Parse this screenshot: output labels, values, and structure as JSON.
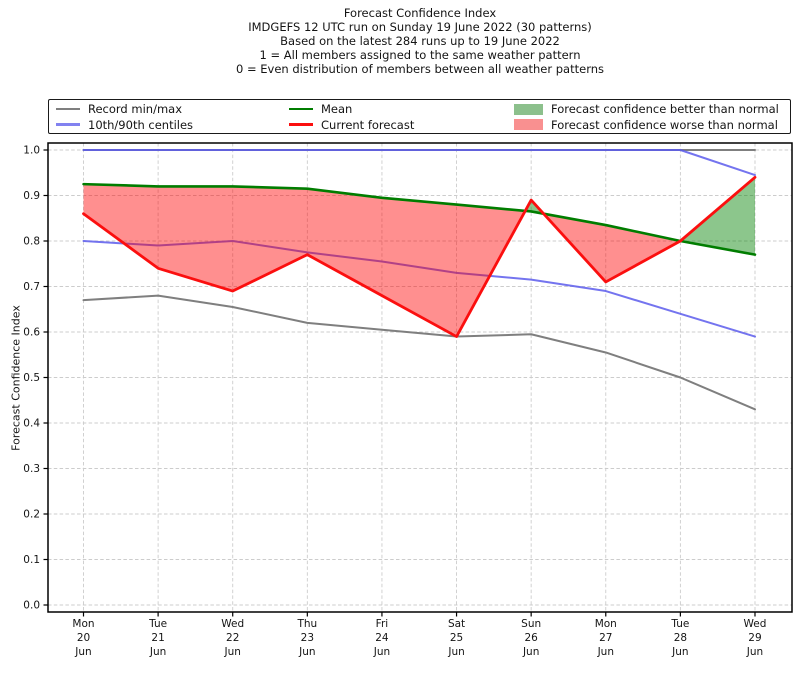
{
  "figure": {
    "title_lines": [
      "Forecast Confidence Index",
      "IMDGEFS 12 UTC run on Sunday 19 June 2022 (30 patterns)",
      "Based on the latest 284 runs up to 19 June 2022",
      "1 = All members assigned to the same weather pattern",
      "0 = Even distribution of members between all weather patterns"
    ]
  },
  "legend": {
    "items": [
      {
        "label": "Record min/max",
        "swatch": "line",
        "color": "#7f7f7f"
      },
      {
        "label": "10th/90th centiles",
        "swatch": "line",
        "color": "#8282f0"
      },
      {
        "label": "Mean",
        "swatch": "line",
        "color": "#007d00"
      },
      {
        "label": "Current forecast",
        "swatch": "line",
        "color": "#fb0f0f"
      },
      {
        "label": "Forecast confidence better than normal",
        "swatch": "patch",
        "color": "#8cc08c"
      },
      {
        "label": "Forecast confidence worse than normal",
        "swatch": "patch",
        "color": "#f99090"
      }
    ]
  },
  "chart_data": {
    "type": "line",
    "title": "Forecast Confidence Index",
    "xlabel": "",
    "ylabel": "Forecast Confidence Index",
    "ylim": [
      0.0,
      1.0
    ],
    "ytick_labels": [
      "0.0",
      "0.1",
      "0.2",
      "0.3",
      "0.4",
      "0.5",
      "0.6",
      "0.7",
      "0.8",
      "0.9",
      "1.0"
    ],
    "grid": "dashed, both axes",
    "legend_position": "top",
    "categories": [
      {
        "day": "Mon",
        "date": "20",
        "month": "Jun"
      },
      {
        "day": "Tue",
        "date": "21",
        "month": "Jun"
      },
      {
        "day": "Wed",
        "date": "22",
        "month": "Jun"
      },
      {
        "day": "Thu",
        "date": "23",
        "month": "Jun"
      },
      {
        "day": "Fri",
        "date": "24",
        "month": "Jun"
      },
      {
        "day": "Sat",
        "date": "25",
        "month": "Jun"
      },
      {
        "day": "Sun",
        "date": "26",
        "month": "Jun"
      },
      {
        "day": "Mon",
        "date": "27",
        "month": "Jun"
      },
      {
        "day": "Tue",
        "date": "28",
        "month": "Jun"
      },
      {
        "day": "Wed",
        "date": "29",
        "month": "Jun"
      }
    ],
    "series": [
      {
        "id": "record_max",
        "name": "Record max",
        "color": "#7f7f7f",
        "lw": 2.0,
        "opacity": 1,
        "values": [
          1.0,
          1.0,
          1.0,
          1.0,
          1.0,
          1.0,
          1.0,
          1.0,
          1.0,
          1.0
        ]
      },
      {
        "id": "record_min",
        "name": "Record min",
        "color": "#7f7f7f",
        "lw": 2.0,
        "opacity": 1,
        "values": [
          0.67,
          0.68,
          0.655,
          0.62,
          0.605,
          0.59,
          0.595,
          0.555,
          0.5,
          0.43
        ]
      },
      {
        "id": "p90",
        "name": "90th centile",
        "color": "#5c5cec",
        "lw": 2.0,
        "opacity": 0.85,
        "values": [
          1.0,
          1.0,
          1.0,
          1.0,
          1.0,
          1.0,
          1.0,
          1.0,
          1.0,
          0.945
        ]
      },
      {
        "id": "p10",
        "name": "10th centile",
        "color": "#5c5cec",
        "lw": 2.0,
        "opacity": 0.85,
        "values": [
          0.8,
          0.79,
          0.8,
          0.775,
          0.755,
          0.73,
          0.715,
          0.69,
          0.64,
          0.59
        ]
      },
      {
        "id": "mean",
        "name": "Mean",
        "color": "#007d00",
        "lw": 2.6,
        "opacity": 1,
        "values": [
          0.925,
          0.92,
          0.92,
          0.915,
          0.895,
          0.88,
          0.865,
          0.835,
          0.8,
          0.77
        ]
      },
      {
        "id": "current",
        "name": "Current forecast",
        "color": "#fb0f0f",
        "lw": 2.8,
        "opacity": 1,
        "values": [
          0.86,
          0.74,
          0.69,
          0.77,
          0.68,
          0.59,
          0.89,
          0.71,
          0.8,
          0.94
        ]
      }
    ],
    "fill_between": {
      "upper": "current",
      "reference": "mean",
      "better_color": "rgba(0,128,0,0.45)",
      "worse_color": "rgba(255,0,0,0.44)"
    }
  }
}
